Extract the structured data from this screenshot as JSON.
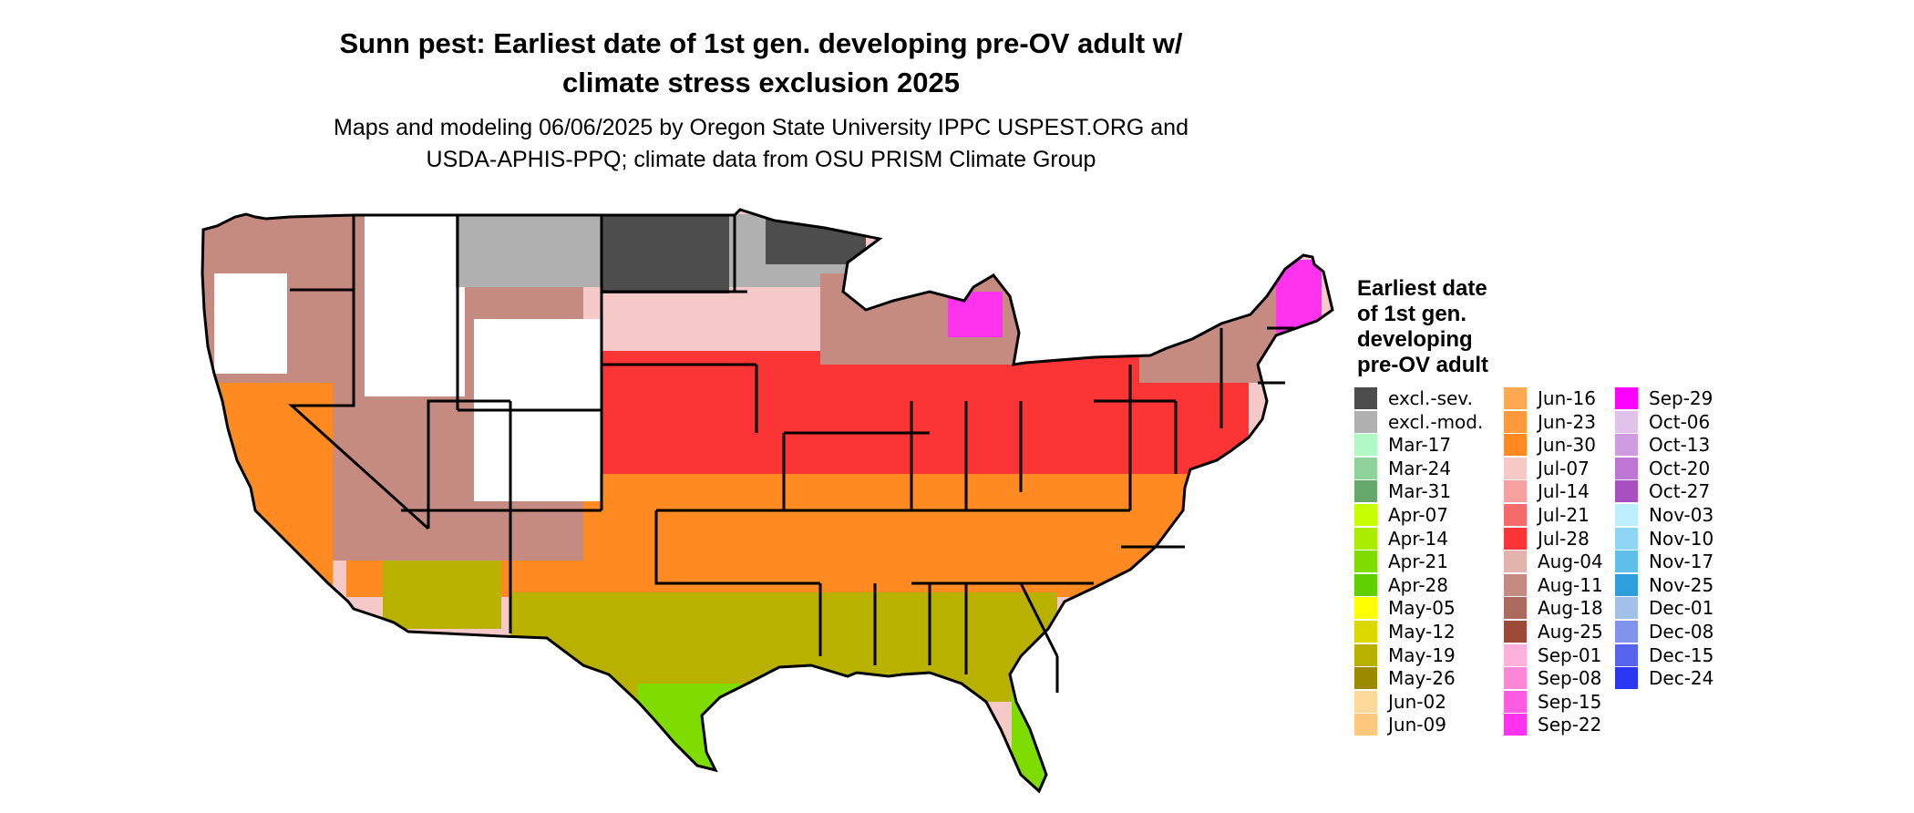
{
  "title": {
    "line1": "Sunn pest: Earliest date of 1st gen. developing pre-OV adult w/",
    "line2": "climate stress exclusion 2025"
  },
  "subtitle": {
    "line1": "Maps and modeling 06/06/2025 by Oregon State University IPPC USPEST.ORG and",
    "line2": "USDA-APHIS-PPQ; climate data from OSU PRISM Climate Group"
  },
  "legend": {
    "title_lines": [
      "Earliest date",
      "of 1st gen.",
      "developing",
      "pre-OV adult"
    ],
    "columns": [
      [
        {
          "label": "excl.-sev.",
          "color": "#4d4d4d"
        },
        {
          "label": "excl.-mod.",
          "color": "#b0b0b0"
        },
        {
          "label": "Mar-17",
          "color": "#b2f7c6"
        },
        {
          "label": "Mar-24",
          "color": "#8fd39a"
        },
        {
          "label": "Mar-31",
          "color": "#66a86c"
        },
        {
          "label": "Apr-07",
          "color": "#c8ff00"
        },
        {
          "label": "Apr-14",
          "color": "#a9ec00"
        },
        {
          "label": "Apr-21",
          "color": "#7fdc00"
        },
        {
          "label": "Apr-28",
          "color": "#5fcf00"
        },
        {
          "label": "May-05",
          "color": "#ffff00"
        },
        {
          "label": "May-12",
          "color": "#dbd800"
        },
        {
          "label": "May-19",
          "color": "#b9b100"
        },
        {
          "label": "May-26",
          "color": "#9b8900"
        },
        {
          "label": "Jun-02",
          "color": "#ffd89b"
        },
        {
          "label": "Jun-09",
          "color": "#ffc87c"
        }
      ],
      [
        {
          "label": "Jun-16",
          "color": "#ffa852"
        },
        {
          "label": "Jun-23",
          "color": "#ff9a3c"
        },
        {
          "label": "Jun-30",
          "color": "#ff8a22"
        },
        {
          "label": "Jul-07",
          "color": "#f6c9c9"
        },
        {
          "label": "Jul-14",
          "color": "#f7a0a0"
        },
        {
          "label": "Jul-21",
          "color": "#f56a6a"
        },
        {
          "label": "Jul-28",
          "color": "#fb3535"
        },
        {
          "label": "Aug-04",
          "color": "#e3b3ad"
        },
        {
          "label": "Aug-11",
          "color": "#c68b80"
        },
        {
          "label": "Aug-18",
          "color": "#ad6a5e"
        },
        {
          "label": "Aug-25",
          "color": "#9c4a38"
        },
        {
          "label": "Sep-01",
          "color": "#ffb1dc"
        },
        {
          "label": "Sep-08",
          "color": "#ff87d8"
        },
        {
          "label": "Sep-15",
          "color": "#ff5ce1"
        },
        {
          "label": "Sep-22",
          "color": "#ff33ee"
        }
      ],
      [
        {
          "label": "Sep-29",
          "color": "#ff00ff"
        },
        {
          "label": "Oct-06",
          "color": "#e1c2ea"
        },
        {
          "label": "Oct-13",
          "color": "#cf9ddf"
        },
        {
          "label": "Oct-20",
          "color": "#bd76d3"
        },
        {
          "label": "Oct-27",
          "color": "#a650c1"
        },
        {
          "label": "Nov-03",
          "color": "#bdeefd"
        },
        {
          "label": "Nov-10",
          "color": "#8fd6f4"
        },
        {
          "label": "Nov-17",
          "color": "#5fbfe8"
        },
        {
          "label": "Nov-25",
          "color": "#2e9fdc"
        },
        {
          "label": "Dec-01",
          "color": "#a3c0e8"
        },
        {
          "label": "Dec-08",
          "color": "#7f94ea"
        },
        {
          "label": "Dec-15",
          "color": "#5563ed"
        },
        {
          "label": "Dec-24",
          "color": "#2b36f3"
        }
      ]
    ]
  },
  "map_regions": [
    {
      "region": "northern-plains-excluded-severe",
      "color": "#4d4d4d"
    },
    {
      "region": "northern-tier-excluded-moderate",
      "color": "#b0b0b0"
    },
    {
      "region": "mountain-west-august",
      "color": "#c68b80"
    },
    {
      "region": "corn-belt-july",
      "color": "#fb3535"
    },
    {
      "region": "central-july",
      "color": "#f6c9c9"
    },
    {
      "region": "mid-south-june",
      "color": "#ff8a22"
    },
    {
      "region": "gulf-may",
      "color": "#b9b100"
    },
    {
      "region": "texas-florida-april",
      "color": "#7fdc00"
    },
    {
      "region": "great-lakes-september",
      "color": "#ff33ee"
    },
    {
      "region": "west-unsuitable",
      "color": "#ffffff"
    }
  ]
}
